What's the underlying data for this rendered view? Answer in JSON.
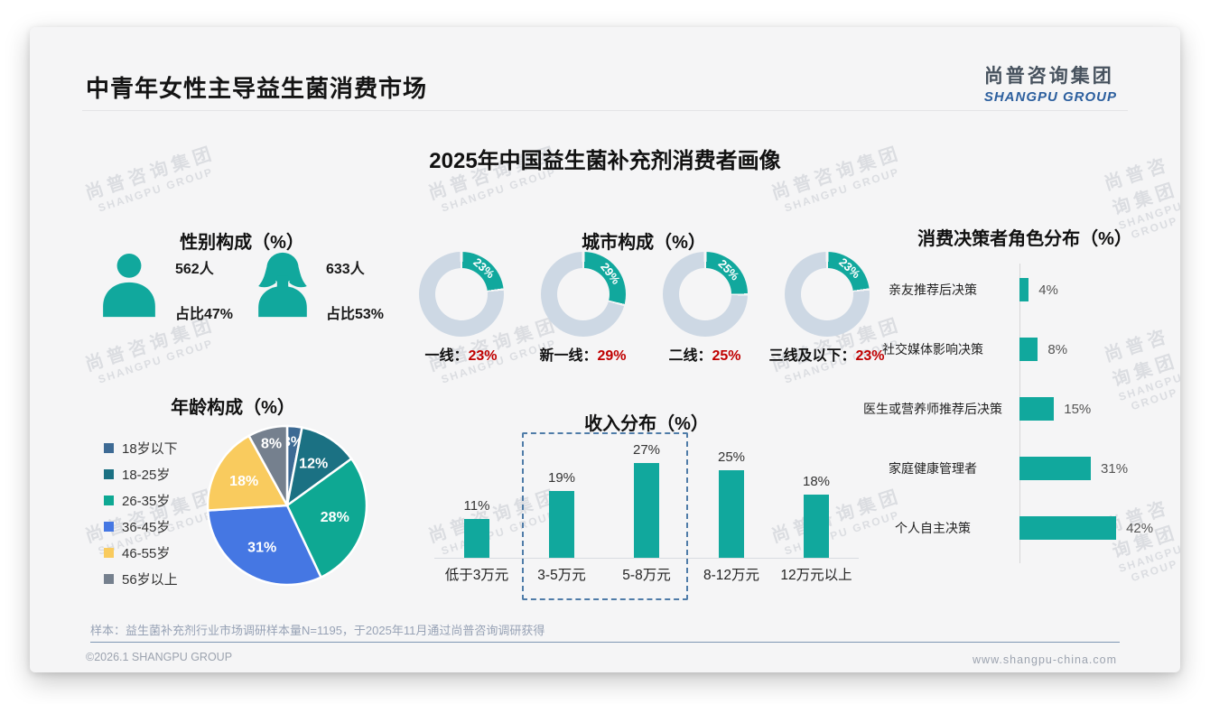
{
  "header": {
    "title": "中青年女性主导益生菌消费市场"
  },
  "logo": {
    "cn": "尚普咨询集团",
    "en": "SHANGPU GROUP"
  },
  "main_title": "2025年中国益生菌补充剂消费者画像",
  "watermark": {
    "cn": "尚普咨询集团",
    "en": "SHANGPU GROUP"
  },
  "note": "样本：益生菌补充剂行业市场调研样本量N=1195，于2025年11月通过尚普咨询调研获得",
  "footer": {
    "left": "©2026.1 SHANGPU GROUP",
    "right": "www.shangpu-china.com"
  },
  "colors": {
    "teal": "#11a89d",
    "donut_base": "#cdd8e4",
    "red": "#c00000",
    "card_bg": "#f5f5f6"
  },
  "chart_data": [
    {
      "type": "table",
      "name": "gender",
      "title": "性别构成（%）",
      "items": [
        {
          "icon": "male-icon",
          "count": "562人",
          "share": "占比47%"
        },
        {
          "icon": "female-icon",
          "count": "633人",
          "share": "占比53%"
        }
      ]
    },
    {
      "type": "pie",
      "variant": "donut",
      "name": "city",
      "title": "城市构成（%）",
      "items": [
        {
          "label": "一线",
          "value": 23
        },
        {
          "label": "新一线",
          "value": 29
        },
        {
          "label": "二线",
          "value": 25
        },
        {
          "label": "三线及以下",
          "value": 23
        }
      ],
      "segment_color": "#11a89d",
      "rest_color": "#cdd8e4",
      "value_color": "#c00000"
    },
    {
      "type": "pie",
      "name": "age",
      "title": "年龄构成（%）",
      "categories": [
        "18岁以下",
        "18-25岁",
        "26-35岁",
        "36-45岁",
        "46-55岁",
        "56岁以上"
      ],
      "values": [
        3,
        12,
        28,
        31,
        18,
        8
      ],
      "colors": [
        "#3d6a94",
        "#1b7183",
        "#0ea893",
        "#4577e3",
        "#f9cb5e",
        "#75808e"
      ],
      "legend_position": "left",
      "label_format": "percent-inside"
    },
    {
      "type": "bar",
      "name": "income",
      "title": "收入分布（%）",
      "categories": [
        "低于3万元",
        "3-5万元",
        "5-8万元",
        "8-12万元",
        "12万元以上"
      ],
      "values": [
        11,
        19,
        27,
        25,
        18
      ],
      "ylim": [
        0,
        30
      ],
      "bar_color": "#11a89d",
      "highlight": {
        "categories": [
          "3-5万元",
          "5-8万元"
        ],
        "style": "dashed-box",
        "box_color": "#4f7ca8"
      }
    },
    {
      "type": "bar",
      "orientation": "horizontal",
      "name": "decision",
      "title": "消费决策者角色分布（%）",
      "categories": [
        "亲友推荐后决策",
        "社交媒体影响决策",
        "医生或营养师推荐后决策",
        "家庭健康管理者",
        "个人自主决策"
      ],
      "values": [
        4,
        8,
        15,
        31,
        42
      ],
      "xlim": [
        0,
        45
      ],
      "bar_color": "#11a89d"
    }
  ]
}
